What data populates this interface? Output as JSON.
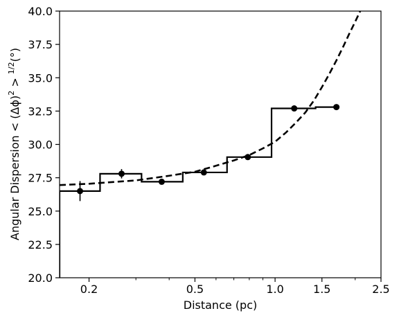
{
  "chart_data": {
    "type": "scatter",
    "xlabel": "Distance (pc)",
    "ylabel": "Angular Dispersion < (Δϕ)² > ¹ᐟ²(°)",
    "ylabel_parts": {
      "main": "Angular Dispersion < (Δϕ)",
      "sq": "2",
      "mid": " > ",
      "sup": "1/2",
      "unit": "(°)"
    },
    "x_scale": "log",
    "xlim": [
      0.155,
      2.5
    ],
    "ylim": [
      20.0,
      40.0
    ],
    "x_ticks": [
      {
        "value": 0.2,
        "label": "0.2"
      },
      {
        "value": 0.5,
        "label": "0.5"
      },
      {
        "value": 1.0,
        "label": "1.0"
      },
      {
        "value": 1.5,
        "label": "1.5"
      },
      {
        "value": 2.5,
        "label": "2.5"
      }
    ],
    "y_ticks": [
      {
        "value": 20.0,
        "label": "20.0"
      },
      {
        "value": 22.5,
        "label": "22.5"
      },
      {
        "value": 25.0,
        "label": "25.0"
      },
      {
        "value": 27.5,
        "label": "27.5"
      },
      {
        "value": 30.0,
        "label": "30.0"
      },
      {
        "value": 32.5,
        "label": "32.5"
      },
      {
        "value": 35.0,
        "label": "35.0"
      },
      {
        "value": 37.5,
        "label": "37.5"
      },
      {
        "value": 40.0,
        "label": "40.0"
      }
    ],
    "grid": false,
    "legend": "none",
    "points": [
      {
        "x": 0.185,
        "y": 26.5,
        "yerr": 0.75
      },
      {
        "x": 0.265,
        "y": 27.8,
        "yerr": 0.35
      },
      {
        "x": 0.375,
        "y": 27.2,
        "yerr": 0.2
      },
      {
        "x": 0.54,
        "y": 27.9,
        "yerr": 0.15
      },
      {
        "x": 0.79,
        "y": 29.05,
        "yerr": 0.1
      },
      {
        "x": 1.18,
        "y": 32.7,
        "yerr": 0.1
      },
      {
        "x": 1.7,
        "y": 32.8,
        "yerr": 0.1
      }
    ],
    "step": [
      {
        "x0": 0.155,
        "x1": 0.22,
        "y": 26.5
      },
      {
        "x0": 0.22,
        "x1": 0.315,
        "y": 27.8
      },
      {
        "x0": 0.315,
        "x1": 0.45,
        "y": 27.2
      },
      {
        "x0": 0.45,
        "x1": 0.66,
        "y": 27.9
      },
      {
        "x0": 0.66,
        "x1": 0.97,
        "y": 29.05
      },
      {
        "x0": 0.97,
        "x1": 1.42,
        "y": 32.7
      },
      {
        "x0": 1.42,
        "x1": 1.7,
        "y": 32.8
      }
    ],
    "step_start_y": 20.0,
    "fit_curve": {
      "style": "dashed",
      "points": [
        [
          0.155,
          26.95
        ],
        [
          0.2,
          27.05
        ],
        [
          0.3,
          27.3
        ],
        [
          0.4,
          27.65
        ],
        [
          0.5,
          27.95
        ],
        [
          0.6,
          28.4
        ],
        [
          0.7,
          28.8
        ],
        [
          0.8,
          29.2
        ],
        [
          0.9,
          29.7
        ],
        [
          1.0,
          30.2
        ],
        [
          1.1,
          30.9
        ],
        [
          1.2,
          31.65
        ],
        [
          1.3,
          32.4
        ],
        [
          1.4,
          33.3
        ],
        [
          1.5,
          34.3
        ],
        [
          1.6,
          35.3
        ],
        [
          1.7,
          36.3
        ],
        [
          1.8,
          37.3
        ],
        [
          1.9,
          38.3
        ],
        [
          2.0,
          39.2
        ],
        [
          2.1,
          40.1
        ]
      ]
    },
    "colors": {
      "line": "#000000",
      "marker": "#000000",
      "background": "#ffffff"
    }
  }
}
